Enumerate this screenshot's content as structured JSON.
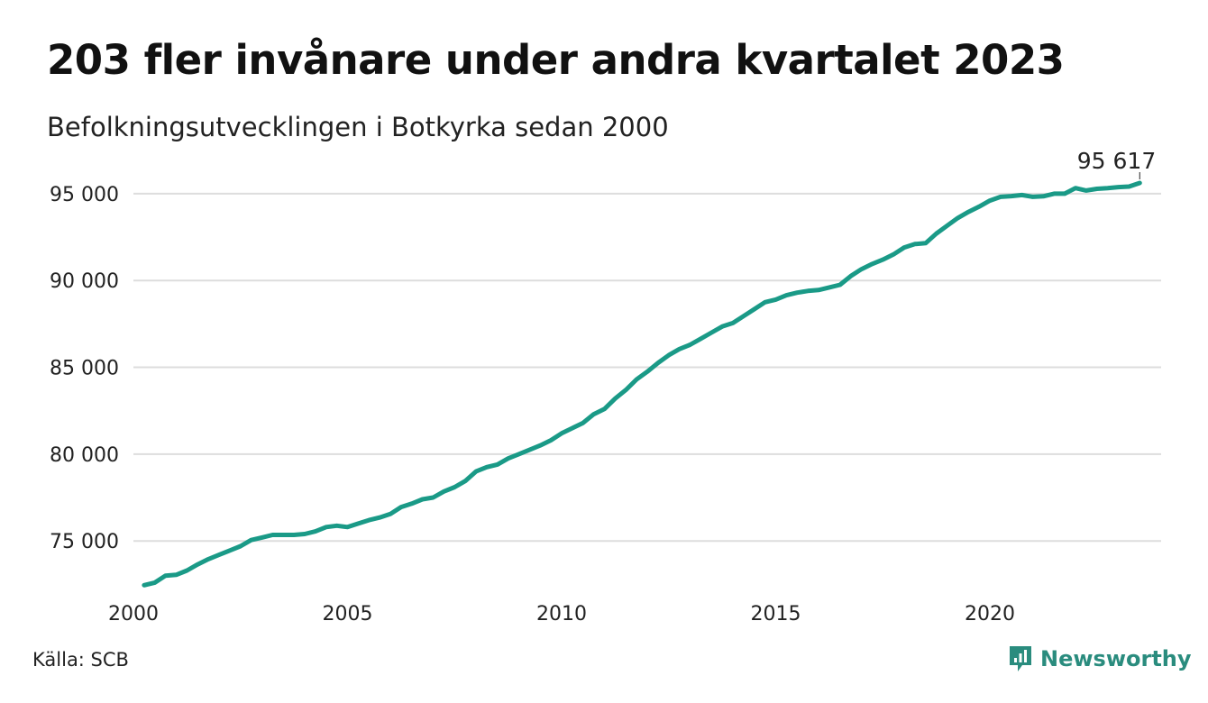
{
  "title": "203 fler invånare under andra kvartalet 2023",
  "subtitle": "Befolkningsutvecklingen i Botkyrka sedan 2000",
  "source": "Källa: SCB",
  "brand": {
    "name": "Newsworthy",
    "icon": "newsworthy-logo-icon",
    "color": "#2a8c7e"
  },
  "colors": {
    "line": "#1a9a87",
    "grid": "#dddddd",
    "text": "#222222"
  },
  "chart_data": {
    "type": "line",
    "title": "203 fler invånare under andra kvartalet 2023",
    "subtitle": "Befolkningsutvecklingen i Botkyrka sedan 2000",
    "xlabel": "",
    "ylabel": "",
    "xlim": [
      2000,
      2024
    ],
    "ylim": [
      72000,
      96500
    ],
    "grid": true,
    "x_ticks": [
      2000,
      2005,
      2010,
      2015,
      2020
    ],
    "x_tick_labels": [
      "2000",
      "2005",
      "2010",
      "2015",
      "2020"
    ],
    "y_ticks": [
      75000,
      80000,
      85000,
      90000,
      95000
    ],
    "y_tick_labels": [
      "75 000",
      "80 000",
      "85 000",
      "90 000",
      "95 000"
    ],
    "series": [
      {
        "color": "#1a9a87",
        "x": [
          2000.25,
          2000.5,
          2000.75,
          2001.0,
          2001.25,
          2001.5,
          2001.75,
          2002.0,
          2002.25,
          2002.5,
          2002.75,
          2003.0,
          2003.25,
          2003.5,
          2003.75,
          2004.0,
          2004.25,
          2004.5,
          2004.75,
          2005.0,
          2005.25,
          2005.5,
          2005.75,
          2006.0,
          2006.25,
          2006.5,
          2006.75,
          2007.0,
          2007.25,
          2007.5,
          2007.75,
          2008.0,
          2008.25,
          2008.5,
          2008.75,
          2009.0,
          2009.25,
          2009.5,
          2009.75,
          2010.0,
          2010.25,
          2010.5,
          2010.75,
          2011.0,
          2011.25,
          2011.5,
          2011.75,
          2012.0,
          2012.25,
          2012.5,
          2012.75,
          2013.0,
          2013.25,
          2013.5,
          2013.75,
          2014.0,
          2014.25,
          2014.5,
          2014.75,
          2015.0,
          2015.25,
          2015.5,
          2015.75,
          2016.0,
          2016.25,
          2016.5,
          2016.75,
          2017.0,
          2017.25,
          2017.5,
          2017.75,
          2018.0,
          2018.25,
          2018.5,
          2018.75,
          2019.0,
          2019.25,
          2019.5,
          2019.75,
          2020.0,
          2020.25,
          2020.5,
          2020.75,
          2021.0,
          2021.25,
          2021.5,
          2021.75,
          2022.0,
          2022.25,
          2022.5,
          2022.75,
          2023.0,
          2023.25,
          2023.5
        ],
        "values": [
          72450,
          72600,
          73000,
          73050,
          73300,
          73650,
          73950,
          74200,
          74450,
          74700,
          75050,
          75200,
          75350,
          75350,
          75350,
          75400,
          75550,
          75800,
          75880,
          75800,
          76000,
          76200,
          76350,
          76550,
          76950,
          77150,
          77400,
          77500,
          77850,
          78100,
          78450,
          79000,
          79250,
          79400,
          79750,
          80000,
          80250,
          80500,
          80800,
          81200,
          81500,
          81800,
          82300,
          82600,
          83200,
          83700,
          84300,
          84750,
          85250,
          85700,
          86050,
          86300,
          86650,
          87000,
          87350,
          87550,
          87950,
          88350,
          88750,
          88900,
          89150,
          89300,
          89400,
          89450,
          89600,
          89750,
          90250,
          90650,
          90950,
          91200,
          91500,
          91900,
          92100,
          92150,
          92700,
          93150,
          93600,
          93950,
          94250,
          94600,
          94820,
          94860,
          94920,
          94820,
          94850,
          95000,
          95000,
          95320,
          95180,
          95280,
          95320,
          95380,
          95410,
          95617
        ]
      }
    ],
    "annotations": [
      {
        "x": 2023.5,
        "y": 95617,
        "text": "95 617"
      }
    ]
  }
}
